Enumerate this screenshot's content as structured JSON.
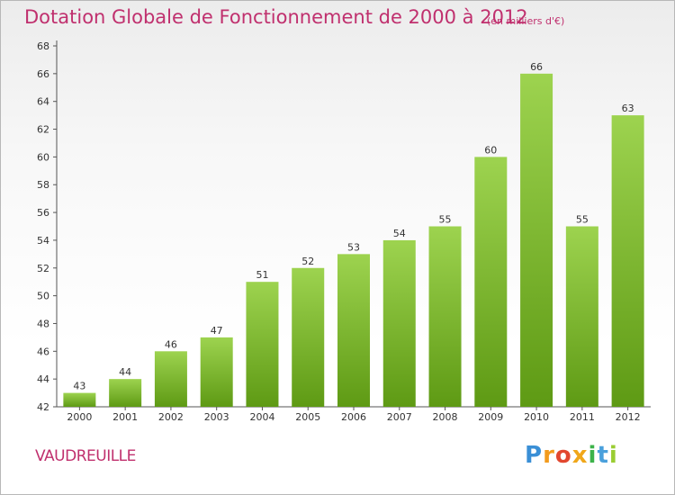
{
  "header": {
    "title": "Dotation Globale de Fonctionnement de 2000 à 2012",
    "subtitle": "(en milliers d'€)"
  },
  "footer": {
    "city": "VAUDREUILLE",
    "logo": "Proxiti"
  },
  "colors": {
    "accent": "#c0306e",
    "bar_top": "#9dd34f",
    "bar_bottom": "#5e9a14"
  },
  "chart_data": {
    "type": "bar",
    "categories": [
      "2000",
      "2001",
      "2002",
      "2003",
      "2004",
      "2005",
      "2006",
      "2007",
      "2008",
      "2009",
      "2010",
      "2011",
      "2012"
    ],
    "values": [
      43,
      44,
      46,
      47,
      51,
      52,
      53,
      54,
      55,
      60,
      66,
      55,
      63
    ],
    "title": "Dotation Globale de Fonctionnement de 2000 à 2012",
    "subtitle": "(en milliers d'€)",
    "xlabel": "",
    "ylabel": "",
    "ylim": [
      42,
      68
    ],
    "yticks": [
      42,
      44,
      46,
      48,
      50,
      52,
      54,
      56,
      58,
      60,
      62,
      64,
      66,
      68
    ],
    "grid": false,
    "legend": "none"
  }
}
